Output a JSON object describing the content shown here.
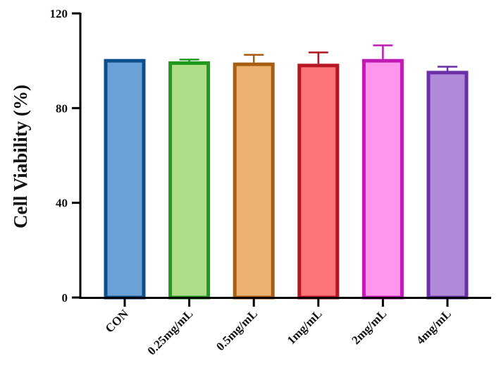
{
  "chart_data": {
    "type": "bar",
    "title": "",
    "xlabel": "",
    "ylabel": "Cell Viability (%)",
    "ylim": [
      0,
      120
    ],
    "yticks": [
      "0",
      "40",
      "80",
      "120"
    ],
    "categories": [
      "CON",
      "0.25mg/mL",
      "0.5mg/mL",
      "1mg/mL",
      "2mg/mL",
      "4mg/mL"
    ],
    "values": [
      100,
      99,
      98.5,
      98,
      100,
      95
    ],
    "errors": [
      0,
      1.5,
      4,
      5.5,
      6.5,
      2.5
    ],
    "fill_colors": [
      "#6ca0d8",
      "#b0dd88",
      "#ecb06f",
      "#fc7576",
      "#fe96ed",
      "#b089d8"
    ],
    "edge_colors": [
      "#0d4f8c",
      "#1f9a1f",
      "#a85e12",
      "#b51621",
      "#c01ab5",
      "#6a2ea8"
    ],
    "grid": false,
    "legend": "none"
  }
}
